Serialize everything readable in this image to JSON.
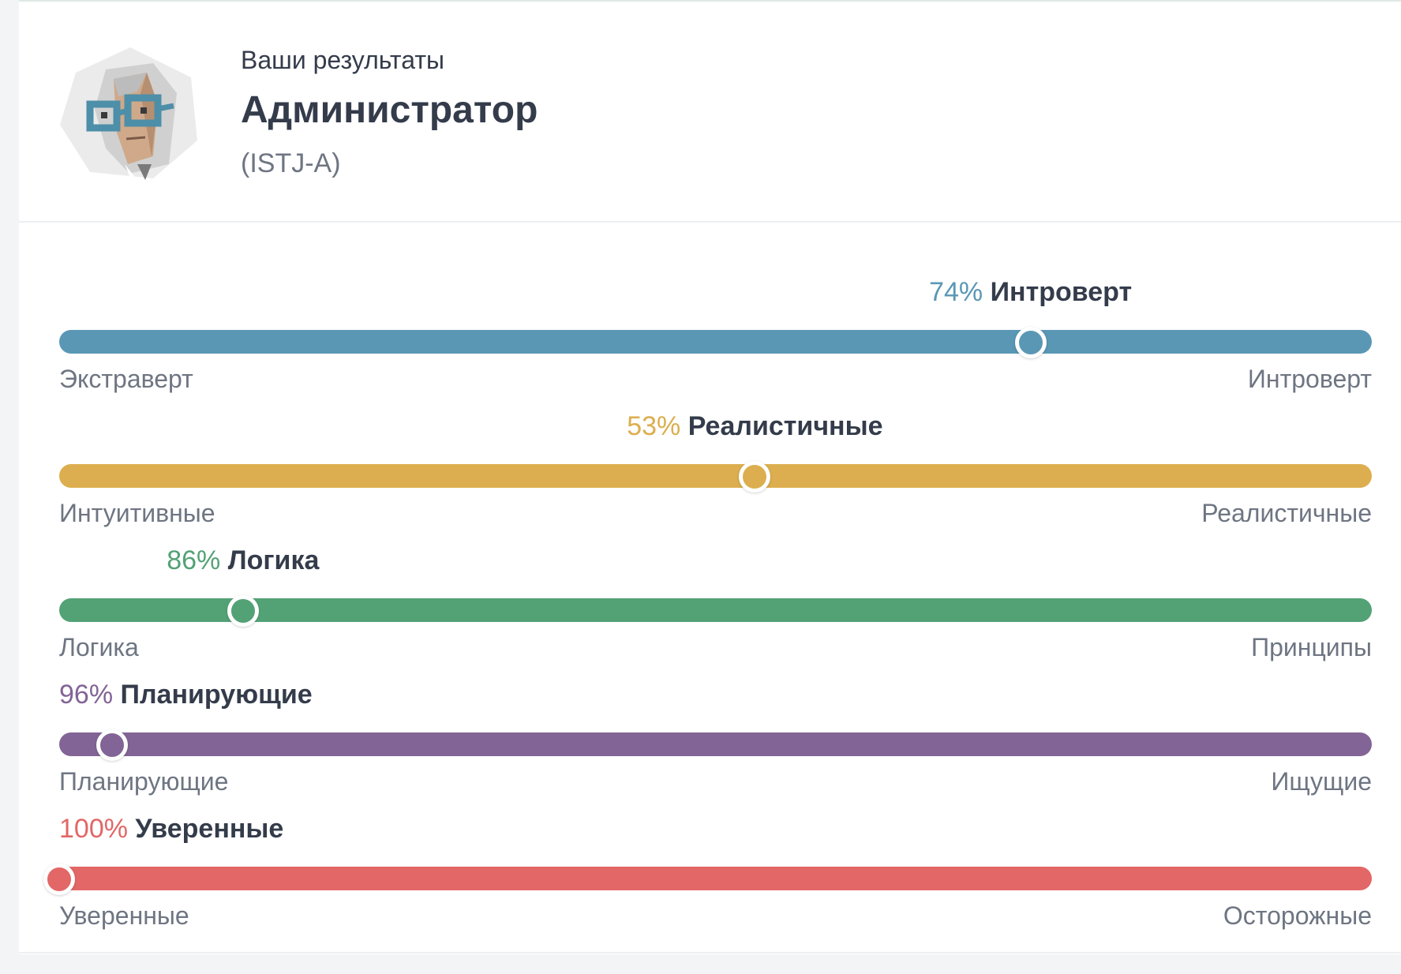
{
  "header": {
    "subtitle": "Ваши результаты",
    "title": "Администратор",
    "code": "(ISTJ-A)",
    "avatar_icon": "administrator-avatar-icon"
  },
  "traits": [
    {
      "percent_label": "74%",
      "name": "Интроверт",
      "left_label": "Экстраверт",
      "right_label": "Интроверт",
      "position": 0.74,
      "color": "#5a97b5"
    },
    {
      "percent_label": "53%",
      "name": "Реалистичные",
      "left_label": "Интуитивные",
      "right_label": "Реалистичные",
      "position": 0.53,
      "color": "#dcae4f"
    },
    {
      "percent_label": "86%",
      "name": "Логика",
      "left_label": "Логика",
      "right_label": "Принципы",
      "position": 0.14,
      "color": "#53a275"
    },
    {
      "percent_label": "96%",
      "name": "Планирующие",
      "left_label": "Планирующие",
      "right_label": "Ищущие",
      "position": 0.04,
      "color": "#836496"
    },
    {
      "percent_label": "100%",
      "name": "Уверенные",
      "left_label": "Уверенные",
      "right_label": "Осторожные",
      "position": 0.0,
      "color": "#e26766"
    }
  ]
}
